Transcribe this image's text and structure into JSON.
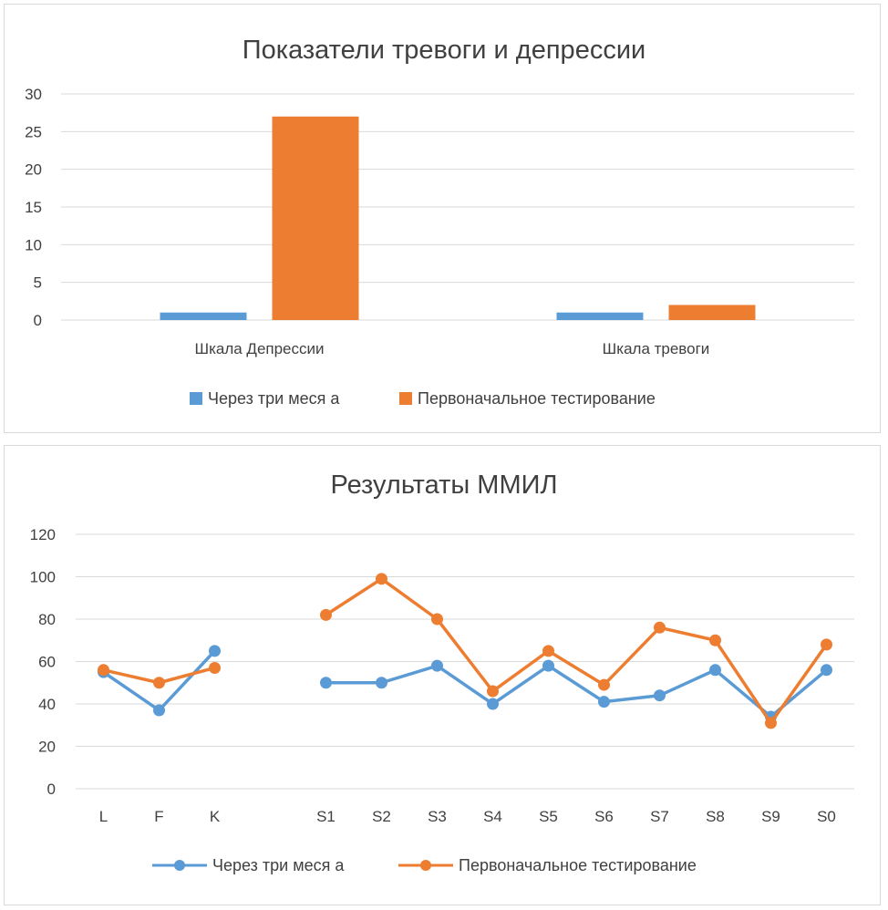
{
  "chart_data": [
    {
      "type": "bar",
      "title": "Показатели тревоги и депрессии",
      "categories": [
        "Шкала Депрессии",
        "Шкала тревоги"
      ],
      "series": [
        {
          "name": "Через три меся а",
          "color": "#5b9bd5",
          "values": [
            1,
            1
          ]
        },
        {
          "name": "Первоначальное тестирование",
          "color": "#ed7d31",
          "values": [
            27,
            2
          ]
        }
      ],
      "ylim": [
        0,
        30
      ],
      "yticks": [
        0,
        5,
        10,
        15,
        20,
        25,
        30
      ],
      "grid": true,
      "legend": "bottom"
    },
    {
      "type": "line",
      "title": "Результаты ММИЛ",
      "categories": [
        "L",
        "F",
        "K",
        "",
        "S1",
        "S2",
        "S3",
        "S4",
        "S5",
        "S6",
        "S7",
        "S8",
        "S9",
        "S0"
      ],
      "series": [
        {
          "name": "Через три меся а",
          "color": "#5b9bd5",
          "values": [
            55,
            37,
            65,
            null,
            50,
            50,
            58,
            40,
            58,
            41,
            44,
            56,
            34,
            56
          ]
        },
        {
          "name": "Первоначальное тестирование",
          "color": "#ed7d31",
          "values": [
            56,
            50,
            57,
            null,
            82,
            99,
            80,
            46,
            65,
            49,
            76,
            70,
            31,
            68
          ]
        }
      ],
      "ylim": [
        0,
        120
      ],
      "yticks": [
        0,
        20,
        40,
        60,
        80,
        100,
        120
      ],
      "grid": true,
      "markers": true,
      "legend": "bottom"
    }
  ]
}
